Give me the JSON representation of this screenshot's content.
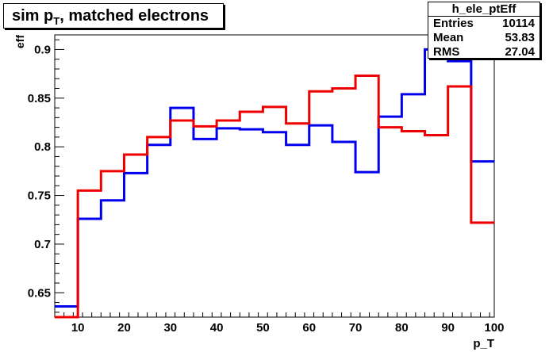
{
  "title": {
    "main": "sim p",
    "sub": "T",
    "rest": ", matched electrons"
  },
  "stats": {
    "name": "h_ele_ptEff",
    "rows": [
      {
        "label": "Entries",
        "value": "10114"
      },
      {
        "label": "Mean",
        "value": "53.83"
      },
      {
        "label": "RMS",
        "value": "27.04"
      }
    ]
  },
  "colors": {
    "blue_series": "#0000ee",
    "red_series": "#ee0000",
    "frame": "#000000"
  },
  "chart_data": {
    "type": "line",
    "step": true,
    "title": "sim p_T, matched electrons",
    "xlabel": "p_T",
    "ylabel": "eff",
    "xlim": [
      5,
      100
    ],
    "ylim": [
      0.625,
      0.915
    ],
    "xticks": [
      10,
      20,
      30,
      40,
      50,
      60,
      70,
      80,
      90,
      100
    ],
    "yticks": [
      0.65,
      0.7,
      0.75,
      0.8,
      0.85,
      0.9
    ],
    "ytick_labels": [
      "0.65",
      "0.7",
      "0.75",
      "0.8",
      "0.85",
      "0.9"
    ],
    "bin_edges": [
      5,
      10,
      15,
      20,
      25,
      30,
      35,
      40,
      45,
      50,
      55,
      60,
      65,
      70,
      75,
      80,
      85,
      90,
      95,
      100
    ],
    "series": [
      {
        "color": "#0000ee",
        "values": [
          0.636,
          0.726,
          0.745,
          0.773,
          0.802,
          0.84,
          0.808,
          0.819,
          0.818,
          0.815,
          0.802,
          0.822,
          0.805,
          0.774,
          0.831,
          0.854,
          0.9,
          0.888,
          0.785
        ]
      },
      {
        "color": "#ee0000",
        "values": [
          0.625,
          0.755,
          0.775,
          0.792,
          0.81,
          0.827,
          0.821,
          0.827,
          0.836,
          0.841,
          0.824,
          0.857,
          0.86,
          0.873,
          0.82,
          0.816,
          0.812,
          0.862,
          0.722
        ]
      }
    ]
  }
}
